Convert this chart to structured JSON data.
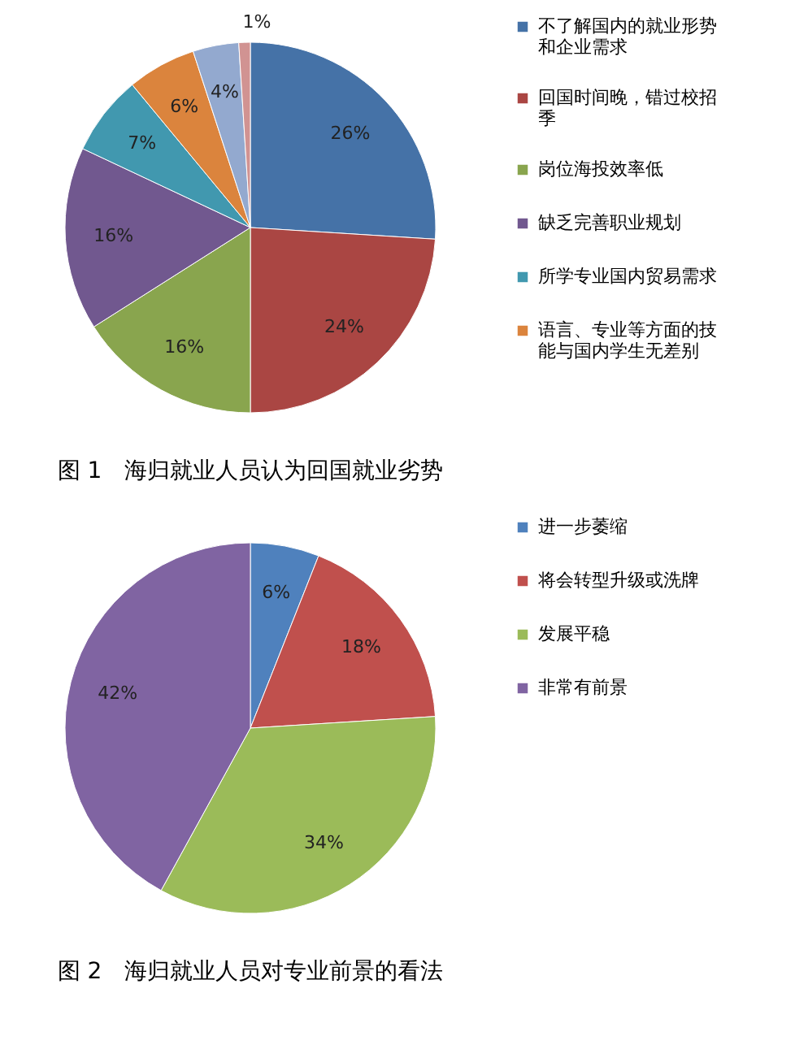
{
  "chart_data": [
    {
      "type": "pie",
      "title": "图 1　海归就业人员认为回国就业劣势",
      "categories": [
        "不了解国内的就业形势和企业需求",
        "回国时间晚，错过校招季",
        "岗位海投效率低",
        "缺乏完善职业规划",
        "所学专业国内贸易需求",
        "语言、专业等方面的技能与国内学生无差别",
        null,
        null
      ],
      "values": [
        26,
        24,
        16,
        16,
        7,
        6,
        4,
        1
      ],
      "colors": [
        "#4572a7",
        "#aa4643",
        "#89a54e",
        "#71588f",
        "#4198af",
        "#db843d",
        "#93a9cf",
        "#d19392"
      ],
      "value_labels": [
        "26%",
        "24%",
        "16%",
        "16%",
        "7%",
        "6%",
        "4%",
        "1%"
      ],
      "legend": "right"
    },
    {
      "type": "pie",
      "title": "图 2　海归就业人员对专业前景的看法",
      "categories": [
        "进一步萎缩",
        "将会转型升级或洗牌",
        "发展平稳",
        "非常有前景"
      ],
      "values": [
        6,
        18,
        34,
        42
      ],
      "colors": [
        "#4f81bd",
        "#c0504d",
        "#9bbb59",
        "#8064a2"
      ],
      "value_labels": [
        "6%",
        "18%",
        "34%",
        "42%"
      ],
      "legend": "right"
    }
  ]
}
